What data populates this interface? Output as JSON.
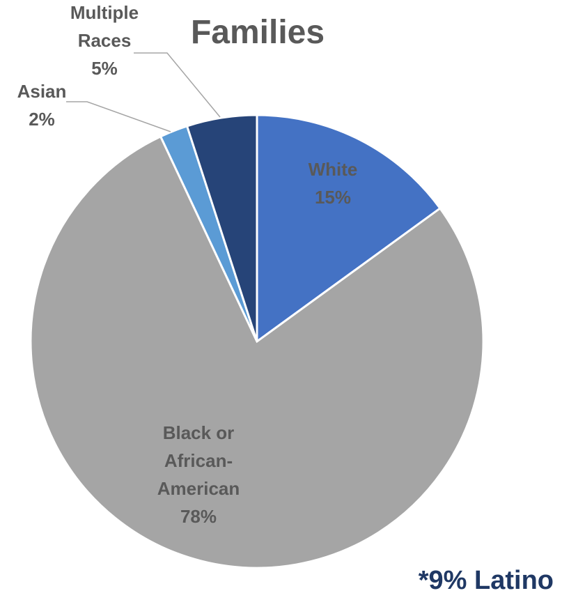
{
  "chart_data": {
    "type": "pie",
    "title": "Families",
    "slices": [
      {
        "label_lines": [
          "White"
        ],
        "value_label": "15%",
        "value": 15,
        "color": "#4472c4"
      },
      {
        "label_lines": [
          "Black or",
          "African-",
          "American"
        ],
        "value_label": "78%",
        "value": 78,
        "color": "#a5a5a5"
      },
      {
        "label_lines": [
          "Asian"
        ],
        "value_label": "2%",
        "value": 2,
        "color": "#5b9bd5"
      },
      {
        "label_lines": [
          "Multiple",
          "Races"
        ],
        "value_label": "5%",
        "value": 5,
        "color": "#264478"
      }
    ],
    "start_angle": "12 o'clock",
    "direction": "clockwise"
  },
  "footnote": "*9% Latino"
}
